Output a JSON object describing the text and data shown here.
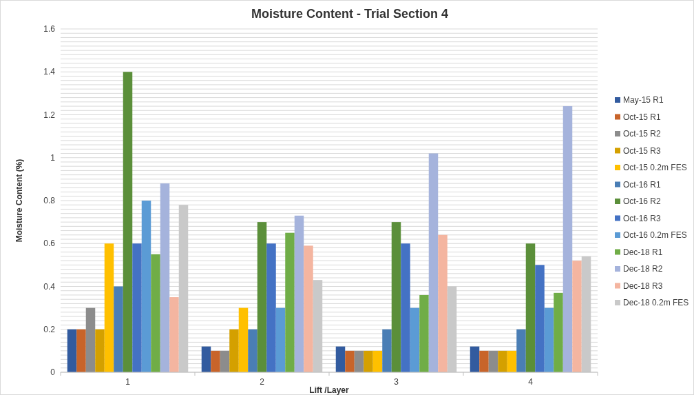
{
  "chart_data": {
    "type": "bar",
    "title": "Moisture Content - Trial Section 4",
    "xlabel": "Lift /Layer",
    "ylabel": "Moisture Content (%)",
    "categories": [
      "1",
      "2",
      "3",
      "4"
    ],
    "series": [
      {
        "name": "May-15 R1",
        "color": "#325b9f",
        "values": [
          0.2,
          0.12,
          0.12,
          0.12
        ]
      },
      {
        "name": "Oct-15 R1",
        "color": "#c8642a",
        "values": [
          0.2,
          0.1,
          0.1,
          0.1
        ]
      },
      {
        "name": "Oct-15 R2",
        "color": "#8c8c8c",
        "values": [
          0.3,
          0.1,
          0.1,
          0.1
        ]
      },
      {
        "name": "Oct-15 R3",
        "color": "#d4a000",
        "values": [
          0.2,
          0.2,
          0.1,
          0.1
        ]
      },
      {
        "name": "Oct-15 0.2m FES",
        "color": "#ffc000",
        "values": [
          0.6,
          0.3,
          0.1,
          0.1
        ]
      },
      {
        "name": "Oct-16 R1",
        "color": "#4a7eb5",
        "values": [
          0.4,
          0.2,
          0.2,
          0.2
        ]
      },
      {
        "name": "Oct-16 R2",
        "color": "#5b8f3a",
        "values": [
          1.4,
          0.7,
          0.7,
          0.6
        ]
      },
      {
        "name": "Oct-16 R3",
        "color": "#4472c4",
        "values": [
          0.6,
          0.6,
          0.6,
          0.5
        ]
      },
      {
        "name": "Oct-16 0.2m FES",
        "color": "#5b9bd5",
        "values": [
          0.8,
          0.3,
          0.3,
          0.3
        ]
      },
      {
        "name": "Dec-18 R1",
        "color": "#70ad47",
        "values": [
          0.55,
          0.65,
          0.36,
          0.37
        ]
      },
      {
        "name": "Dec-18 R2",
        "color": "#a5b3dc",
        "values": [
          0.88,
          0.73,
          1.02,
          1.24
        ]
      },
      {
        "name": "Dec-18 R3",
        "color": "#f4b5a0",
        "values": [
          0.35,
          0.59,
          0.64,
          0.52
        ]
      },
      {
        "name": "Dec-18 0.2m FES",
        "color": "#c9c9c9",
        "values": [
          0.78,
          0.43,
          0.4,
          0.54
        ]
      }
    ],
    "ylim": [
      0,
      1.6
    ],
    "yticks": [
      0,
      {
        "value": 0.02,
        "label": null
      },
      {
        "value": 0.04,
        "label": null
      },
      {
        "value": 0.06,
        "label": null
      },
      {
        "value": 0.08,
        "label": null
      },
      {
        "value": 0.1,
        "label": null
      },
      {
        "value": 0.12,
        "label": null
      },
      {
        "value": 0.14,
        "label": null
      },
      {
        "value": 0.16,
        "label": null
      },
      {
        "value": 0.18,
        "label": null
      },
      0.2,
      {
        "value": 0.22,
        "label": null
      },
      {
        "value": 0.24,
        "label": null
      },
      {
        "value": 0.26,
        "label": null
      },
      {
        "value": 0.28,
        "label": null
      },
      {
        "value": 0.3,
        "label": null
      },
      {
        "value": 0.32,
        "label": null
      },
      {
        "value": 0.34,
        "label": null
      },
      {
        "value": 0.36,
        "label": null
      },
      {
        "value": 0.38,
        "label": null
      },
      0.4,
      {
        "value": 0.42,
        "label": null
      },
      {
        "value": 0.44,
        "label": null
      },
      {
        "value": 0.46,
        "label": null
      },
      {
        "value": 0.48,
        "label": null
      },
      {
        "value": 0.5,
        "label": null
      },
      {
        "value": 0.52,
        "label": null
      },
      {
        "value": 0.54,
        "label": null
      },
      {
        "value": 0.56,
        "label": null
      },
      {
        "value": 0.58,
        "label": null
      },
      0.6,
      {
        "value": 0.62,
        "label": null
      },
      {
        "value": 0.64,
        "label": null
      },
      {
        "value": 0.66,
        "label": null
      },
      {
        "value": 0.68,
        "label": null
      },
      {
        "value": 0.7,
        "label": null
      },
      {
        "value": 0.72,
        "label": null
      },
      {
        "value": 0.74,
        "label": null
      },
      {
        "value": 0.76,
        "label": null
      },
      {
        "value": 0.78,
        "label": null
      },
      0.8,
      {
        "value": 0.82,
        "label": null
      },
      {
        "value": 0.84,
        "label": null
      },
      {
        "value": 0.86,
        "label": null
      },
      {
        "value": 0.88,
        "label": null
      },
      {
        "value": 0.9,
        "label": null
      },
      {
        "value": 0.92,
        "label": null
      },
      {
        "value": 0.94,
        "label": null
      },
      {
        "value": 0.96,
        "label": null
      },
      {
        "value": 0.98,
        "label": null
      },
      1,
      {
        "value": 1.02,
        "label": null
      },
      {
        "value": 1.04,
        "label": null
      },
      {
        "value": 1.06,
        "label": null
      },
      {
        "value": 1.08,
        "label": null
      },
      {
        "value": 1.1,
        "label": null
      },
      {
        "value": 1.12,
        "label": null
      },
      {
        "value": 1.14,
        "label": null
      },
      {
        "value": 1.16,
        "label": null
      },
      {
        "value": 1.18,
        "label": null
      },
      1.2,
      {
        "value": 1.22,
        "label": null
      },
      {
        "value": 1.24,
        "label": null
      },
      {
        "value": 1.26,
        "label": null
      },
      {
        "value": 1.28,
        "label": null
      },
      {
        "value": 1.3,
        "label": null
      },
      {
        "value": 1.32,
        "label": null
      },
      {
        "value": 1.34,
        "label": null
      },
      {
        "value": 1.36,
        "label": null
      },
      {
        "value": 1.38,
        "label": null
      },
      1.4,
      {
        "value": 1.42,
        "label": null
      },
      {
        "value": 1.44,
        "label": null
      },
      {
        "value": 1.46,
        "label": null
      },
      {
        "value": 1.48,
        "label": null
      },
      {
        "value": 1.5,
        "label": null
      },
      {
        "value": 1.52,
        "label": null
      },
      {
        "value": 1.54,
        "label": null
      },
      {
        "value": 1.56,
        "label": null
      },
      {
        "value": 1.58,
        "label": null
      },
      1.6
    ],
    "grid": "y",
    "legend": "right"
  }
}
